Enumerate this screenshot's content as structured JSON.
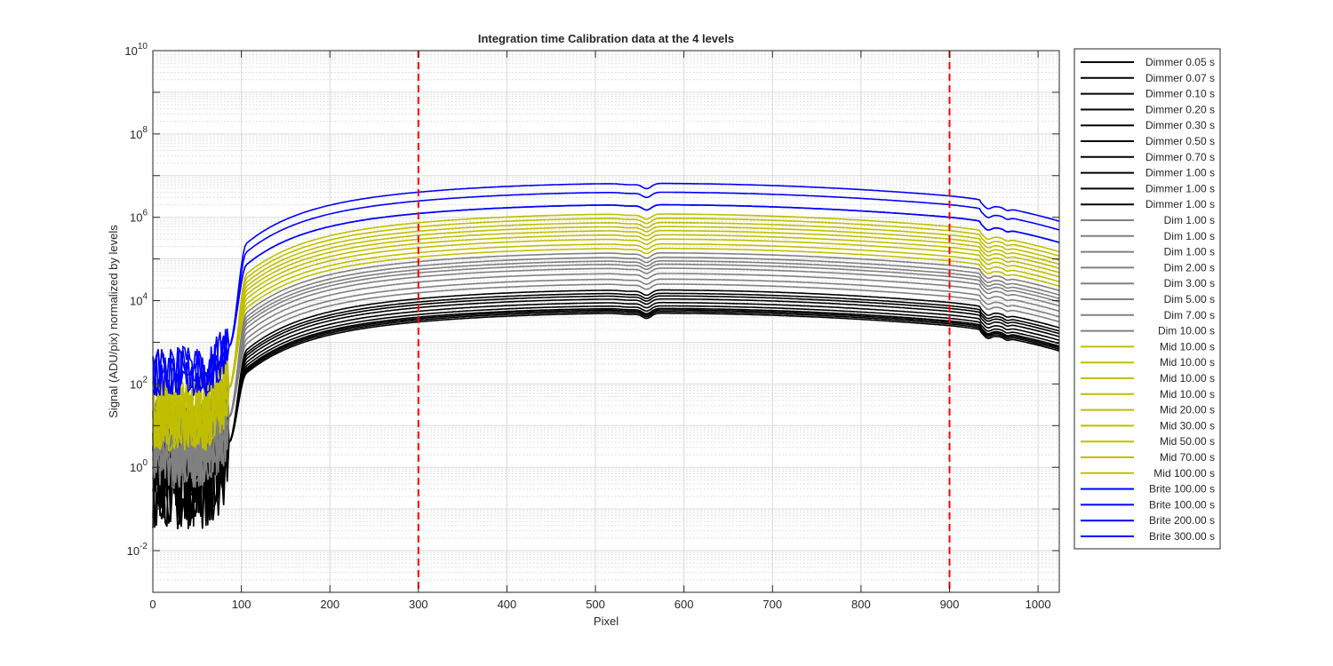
{
  "chart_data": {
    "type": "line",
    "title": "Integration time Calibration data at the 4 levels",
    "xlabel": "Pixel",
    "ylabel": "Signal (ADU/pix) normalized by levels",
    "x_range": [
      0,
      1024
    ],
    "y_range_log10": [
      -3,
      10
    ],
    "y_scale": "log",
    "grid": true,
    "minor_grid": true,
    "legend_placement": "outside-right",
    "x_ticks": [
      0,
      100,
      200,
      300,
      400,
      500,
      600,
      700,
      800,
      900,
      1000
    ],
    "x_tick_labels": [
      "0",
      "100",
      "200",
      "300",
      "400",
      "500",
      "600",
      "700",
      "800",
      "900",
      "1000"
    ],
    "y_tick_exponents": [
      -2,
      0,
      2,
      4,
      6,
      8,
      10
    ],
    "y_tick_base": "10",
    "vertical_markers": [
      300,
      900
    ],
    "vertical_marker_color": "#ff0000",
    "level_colors": {
      "Dimmer": "#000000",
      "Dim": "#808080",
      "Mid": "#bfbf00",
      "Brite": "#0000ff"
    },
    "series": [
      {
        "name": "Dimmer 0.05 s",
        "level": "Dimmer",
        "peak": 5000
      },
      {
        "name": "Dimmer 0.07 s",
        "level": "Dimmer",
        "peak": 5500
      },
      {
        "name": "Dimmer 0.10 s",
        "level": "Dimmer",
        "peak": 6000
      },
      {
        "name": "Dimmer 0.20 s",
        "level": "Dimmer",
        "peak": 6500
      },
      {
        "name": "Dimmer 0.30 s",
        "level": "Dimmer",
        "peak": 7500
      },
      {
        "name": "Dimmer 0.50 s",
        "level": "Dimmer",
        "peak": 9000
      },
      {
        "name": "Dimmer 0.70 s",
        "level": "Dimmer",
        "peak": 11000
      },
      {
        "name": "Dimmer 1.00 s",
        "level": "Dimmer",
        "peak": 13000
      },
      {
        "name": "Dimmer 1.00 s",
        "level": "Dimmer",
        "peak": 15000
      },
      {
        "name": "Dimmer 1.00 s",
        "level": "Dimmer",
        "peak": 18000
      },
      {
        "name": "Dim 1.00 s",
        "level": "Dim",
        "peak": 25000
      },
      {
        "name": "Dim 1.00 s",
        "level": "Dim",
        "peak": 33000
      },
      {
        "name": "Dim 1.00 s",
        "level": "Dim",
        "peak": 45000
      },
      {
        "name": "Dim 2.00 s",
        "level": "Dim",
        "peak": 60000
      },
      {
        "name": "Dim 3.00 s",
        "level": "Dim",
        "peak": 75000
      },
      {
        "name": "Dim 5.00 s",
        "level": "Dim",
        "peak": 90000
      },
      {
        "name": "Dim 7.00 s",
        "level": "Dim",
        "peak": 110000
      },
      {
        "name": "Dim 10.00 s",
        "level": "Dim",
        "peak": 140000
      },
      {
        "name": "Mid 10.00 s",
        "level": "Mid",
        "peak": 180000
      },
      {
        "name": "Mid 10.00 s",
        "level": "Mid",
        "peak": 230000
      },
      {
        "name": "Mid 10.00 s",
        "level": "Mid",
        "peak": 300000
      },
      {
        "name": "Mid 10.00 s",
        "level": "Mid",
        "peak": 380000
      },
      {
        "name": "Mid 20.00 s",
        "level": "Mid",
        "peak": 480000
      },
      {
        "name": "Mid 30.00 s",
        "level": "Mid",
        "peak": 600000
      },
      {
        "name": "Mid 50.00 s",
        "level": "Mid",
        "peak": 750000
      },
      {
        "name": "Mid 70.00 s",
        "level": "Mid",
        "peak": 950000
      },
      {
        "name": "Mid 100.00 s",
        "level": "Mid",
        "peak": 1200000
      },
      {
        "name": "Brite 100.00 s",
        "level": "Brite",
        "peak": 2000000
      },
      {
        "name": "Brite 100.00 s",
        "level": "Brite",
        "peak": 2000000
      },
      {
        "name": "Brite 200.00 s",
        "level": "Brite",
        "peak": 4000000
      },
      {
        "name": "Brite 300.00 s",
        "level": "Brite",
        "peak": 6500000
      }
    ]
  }
}
